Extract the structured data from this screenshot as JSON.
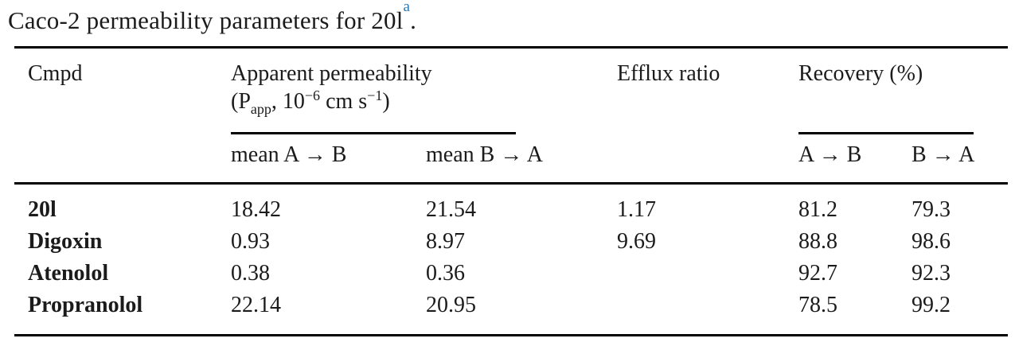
{
  "title": {
    "text": "Caco-2 permeability parameters for 20l",
    "footnote_marker": "a",
    "period": "."
  },
  "colors": {
    "text": "#1b1b1b",
    "rule": "#000000",
    "footnote_blue": "#2878b4"
  },
  "table": {
    "columns": {
      "cmpd": "Cmpd",
      "apparent_permeability": {
        "line1": "Apparent permeability",
        "papp_parts": {
          "p1": "(P",
          "sub": "app",
          "p2": ", 10",
          "sup1": "−6",
          "p3": " cm s",
          "sup2": "−1",
          "p4": ")"
        }
      },
      "efflux": "Efflux ratio",
      "recovery": "Recovery (%)",
      "subheaders": {
        "papp_ab": "mean A → B",
        "papp_ba": "mean B → A",
        "rec_ab": "A → B",
        "rec_ba": "B → A"
      }
    },
    "rows": [
      {
        "name": "20l",
        "papp_ab": "18.42",
        "papp_ba": "21.54",
        "efflux": "1.17",
        "rec_ab": "81.2",
        "rec_ba": "79.3"
      },
      {
        "name": "Digoxin",
        "papp_ab": "0.93",
        "papp_ba": "8.97",
        "efflux": "9.69",
        "rec_ab": "88.8",
        "rec_ba": "98.6"
      },
      {
        "name": "Atenolol",
        "papp_ab": "0.38",
        "papp_ba": "0.36",
        "efflux": "",
        "rec_ab": "92.7",
        "rec_ba": "92.3"
      },
      {
        "name": "Propranolol",
        "papp_ab": "22.14",
        "papp_ba": "20.95",
        "efflux": "",
        "rec_ab": "78.5",
        "rec_ba": "99.2"
      }
    ]
  }
}
